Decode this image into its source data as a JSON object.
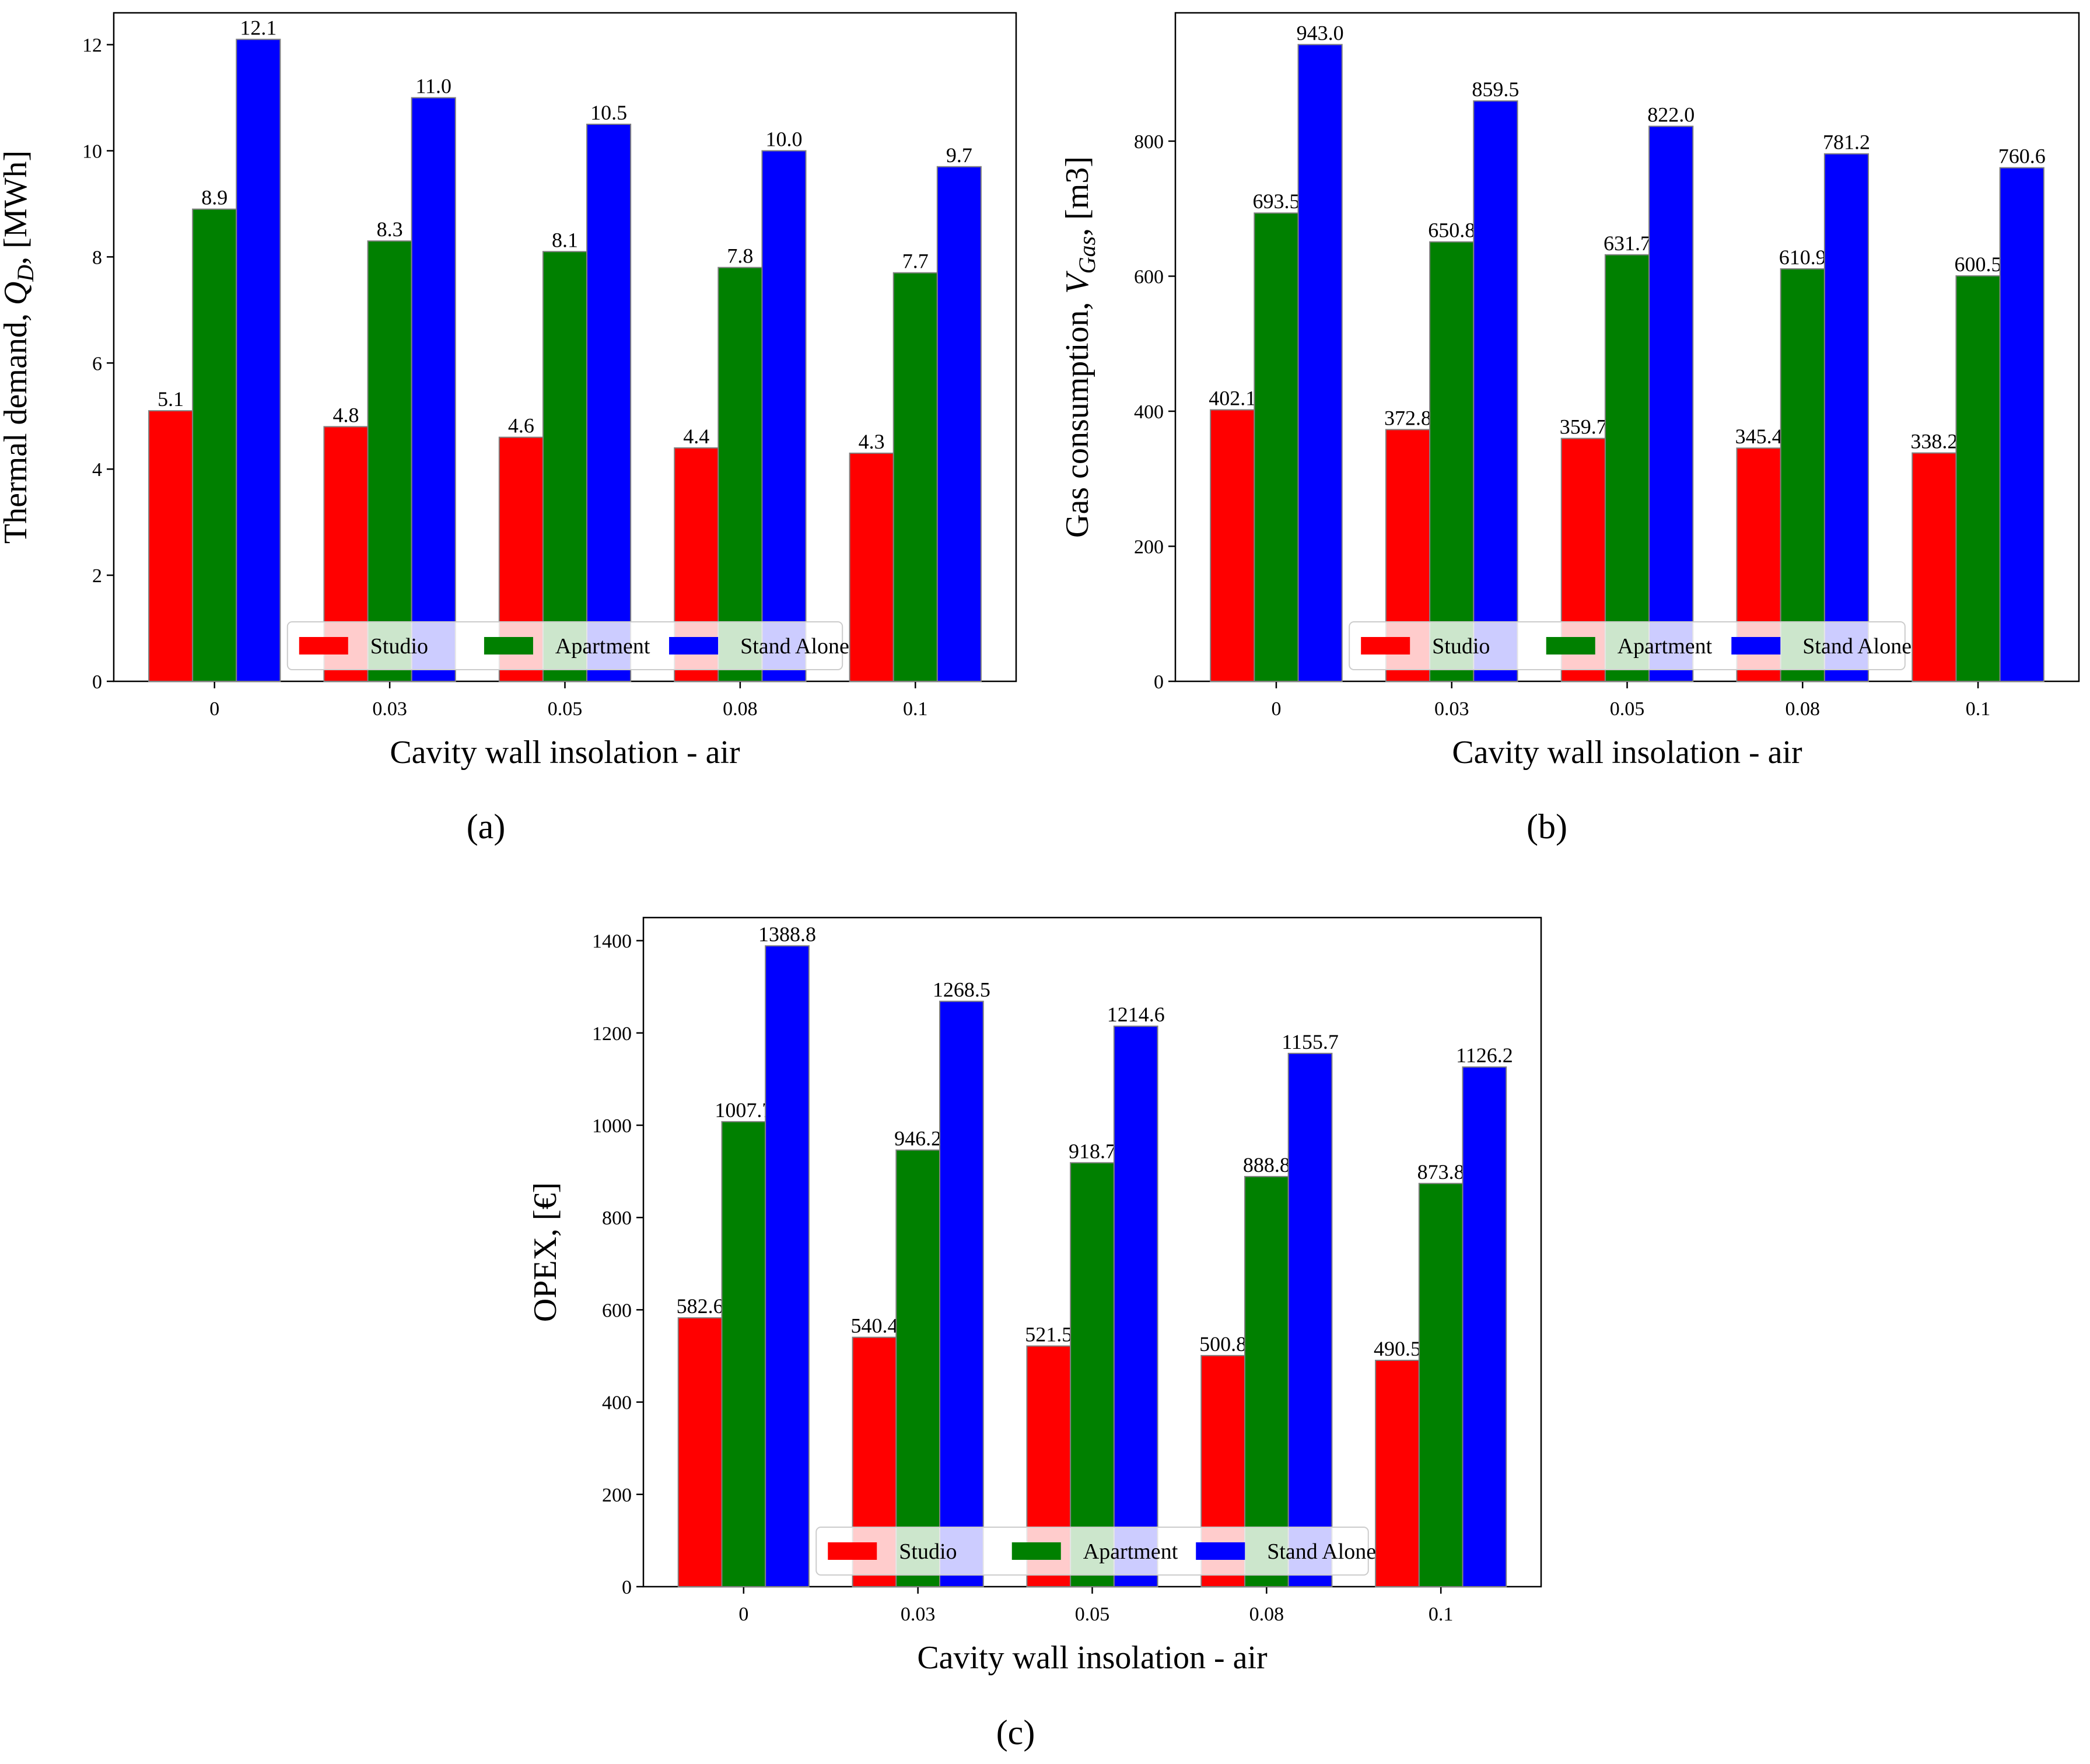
{
  "colors": {
    "Studio": "#ff0000",
    "Apartment": "#008000",
    "Stand Alone": "#0000ff"
  },
  "panel_labels": [
    "(a)",
    "(b)",
    "(c)"
  ],
  "chart_data": [
    {
      "type": "bar",
      "panel": "(a)",
      "xlabel": "Cavity wall insolation -  air",
      "ylabel": "Thermal demand, Q_D, [MWh]",
      "categories": [
        "0",
        "0.03",
        "0.05",
        "0.08",
        "0.1"
      ],
      "ylim": [
        0,
        12.6
      ],
      "yticks": [
        0,
        2,
        4,
        6,
        8,
        10,
        12
      ],
      "legend_position": "bottom-center",
      "series": [
        {
          "name": "Studio",
          "values": [
            5.1,
            4.8,
            4.6,
            4.4,
            4.3
          ],
          "labels": [
            "5.1",
            "4.8",
            "4.6",
            "4.4",
            "4.3"
          ]
        },
        {
          "name": "Apartment",
          "values": [
            8.9,
            8.3,
            8.1,
            7.8,
            7.7
          ],
          "labels": [
            "8.9",
            "8.3",
            "8.1",
            "7.8",
            "7.7"
          ]
        },
        {
          "name": "Stand Alone",
          "values": [
            12.1,
            11.0,
            10.5,
            10.0,
            9.7
          ],
          "labels": [
            "12.1",
            "11.0",
            "10.5",
            "10.0",
            "9.7"
          ]
        }
      ]
    },
    {
      "type": "bar",
      "panel": "(b)",
      "xlabel": "Cavity wall insolation -  air",
      "ylabel": "Gas consumption, V_Gas, [m3]",
      "categories": [
        "0",
        "0.03",
        "0.05",
        "0.08",
        "0.1"
      ],
      "ylim": [
        0,
        990
      ],
      "yticks": [
        0,
        200,
        400,
        600,
        800
      ],
      "legend_position": "bottom-center",
      "series": [
        {
          "name": "Studio",
          "values": [
            402.1,
            372.8,
            359.7,
            345.4,
            338.2
          ],
          "labels": [
            "402.1",
            "372.8",
            "359.7",
            "345.4",
            "338.2"
          ]
        },
        {
          "name": "Apartment",
          "values": [
            693.5,
            650.8,
            631.7,
            610.9,
            600.5
          ],
          "labels": [
            "693.5",
            "650.8",
            "631.7",
            "610.9",
            "600.5"
          ]
        },
        {
          "name": "Stand Alone",
          "values": [
            943.0,
            859.5,
            822.0,
            781.2,
            760.6
          ],
          "labels": [
            "943.0",
            "859.5",
            "822.0",
            "781.2",
            "760.6"
          ]
        }
      ]
    },
    {
      "type": "bar",
      "panel": "(c)",
      "xlabel": "Cavity wall insolation -  air",
      "ylabel": "OPEX, [€]",
      "categories": [
        "0",
        "0.03",
        "0.05",
        "0.08",
        "0.1"
      ],
      "ylim": [
        0,
        1450
      ],
      "yticks": [
        0,
        200,
        400,
        600,
        800,
        1000,
        1200,
        1400
      ],
      "legend_position": "bottom-center",
      "series": [
        {
          "name": "Studio",
          "values": [
            582.6,
            540.4,
            521.5,
            500.8,
            490.5
          ],
          "labels": [
            "582.6",
            "540.4",
            "521.5",
            "500.8",
            "490.5"
          ]
        },
        {
          "name": "Apartment",
          "values": [
            1007.7,
            946.2,
            918.7,
            888.8,
            873.8
          ],
          "labels": [
            "1007.7",
            "946.2",
            "918.7",
            "888.8",
            "873.8"
          ]
        },
        {
          "name": "Stand Alone",
          "values": [
            1388.8,
            1268.5,
            1214.6,
            1155.7,
            1126.2
          ],
          "labels": [
            "1388.8",
            "1268.5",
            "1214.6",
            "1155.7",
            "1126.2"
          ]
        }
      ]
    }
  ]
}
